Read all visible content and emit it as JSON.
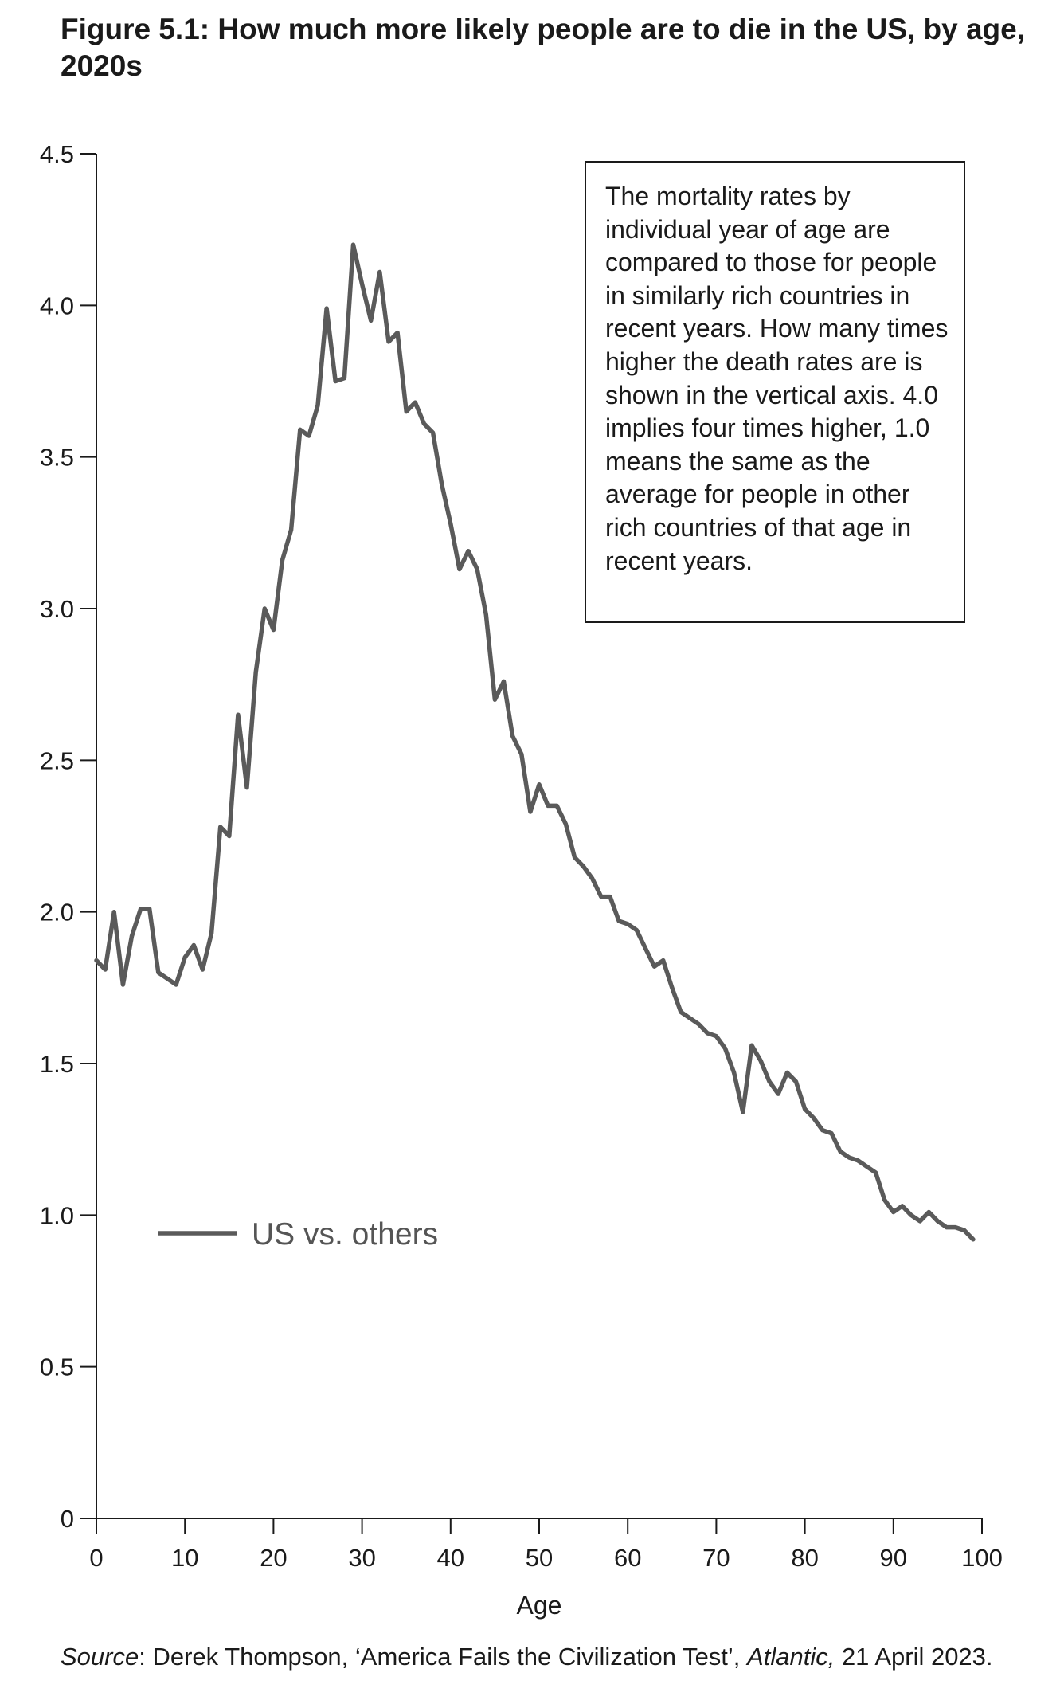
{
  "title": "Figure 5.1: How much more likely people are to die in the US, by age, 2020s",
  "note": "The mortality rates by individual year of age are compared to those for people in similarly rich countries in recent years. How many times higher the death rates are is shown in the vertical axis. 4.0 implies four times higher, 1.0 means the same as the average for people in other rich countries of that age in recent years.",
  "source": {
    "label": "Source",
    "text_before": ": Derek Thompson, ‘America Fails the Civilization Test’, ",
    "publication": "Atlantic,",
    "text_after": " 21 April 2023."
  },
  "colors": {
    "line": "#5a5a5a",
    "axis": "#1a1a1a"
  },
  "chart_data": {
    "type": "line",
    "title": "Figure 5.1: How much more likely people are to die in the US, by age, 2020s",
    "xlabel": "Age",
    "ylabel": "",
    "xlim": [
      0,
      100
    ],
    "ylim": [
      0,
      4.5
    ],
    "xticks": [
      0,
      10,
      20,
      30,
      40,
      50,
      60,
      70,
      80,
      90,
      100
    ],
    "yticks": [
      0,
      0.5,
      1.0,
      1.5,
      2.0,
      2.5,
      3.0,
      3.5,
      4.0,
      4.5
    ],
    "ytick_labels": [
      "0",
      "0.5",
      "1.0",
      "1.5",
      "2.0",
      "2.5",
      "3.0",
      "3.5",
      "4.0",
      "4.5"
    ],
    "grid": false,
    "legend_position": "bottom-left",
    "series": [
      {
        "name": "US vs. others",
        "x": [
          0,
          1,
          2,
          3,
          4,
          5,
          6,
          7,
          8,
          9,
          10,
          11,
          12,
          13,
          14,
          15,
          16,
          17,
          18,
          19,
          20,
          21,
          22,
          23,
          24,
          25,
          26,
          27,
          28,
          29,
          30,
          31,
          32,
          33,
          34,
          35,
          36,
          37,
          38,
          39,
          40,
          41,
          42,
          43,
          44,
          45,
          46,
          47,
          48,
          49,
          50,
          51,
          52,
          53,
          54,
          55,
          56,
          57,
          58,
          59,
          60,
          61,
          62,
          63,
          64,
          65,
          66,
          67,
          68,
          69,
          70,
          71,
          72,
          73,
          74,
          75,
          76,
          77,
          78,
          79,
          80,
          81,
          82,
          83,
          84,
          85,
          86,
          87,
          88,
          89,
          90,
          91,
          92,
          93,
          94,
          95,
          96,
          97,
          98,
          99
        ],
        "values": [
          1.84,
          1.81,
          2.0,
          1.76,
          1.92,
          2.01,
          2.01,
          1.8,
          1.78,
          1.76,
          1.85,
          1.89,
          1.81,
          1.93,
          2.28,
          2.25,
          2.65,
          2.41,
          2.79,
          3.0,
          2.93,
          3.16,
          3.26,
          3.59,
          3.57,
          3.67,
          3.99,
          3.75,
          3.76,
          4.2,
          4.07,
          3.95,
          4.11,
          3.88,
          3.91,
          3.65,
          3.68,
          3.61,
          3.58,
          3.41,
          3.28,
          3.13,
          3.19,
          3.13,
          2.98,
          2.7,
          2.76,
          2.58,
          2.52,
          2.33,
          2.42,
          2.35,
          2.35,
          2.29,
          2.18,
          2.15,
          2.11,
          2.05,
          2.05,
          1.97,
          1.96,
          1.94,
          1.88,
          1.82,
          1.84,
          1.75,
          1.67,
          1.65,
          1.63,
          1.6,
          1.59,
          1.55,
          1.47,
          1.34,
          1.56,
          1.51,
          1.44,
          1.4,
          1.47,
          1.44,
          1.35,
          1.32,
          1.28,
          1.27,
          1.21,
          1.19,
          1.18,
          1.16,
          1.14,
          1.05,
          1.01,
          1.03,
          1.0,
          0.98,
          1.01,
          0.98,
          0.96,
          0.96,
          0.95,
          0.92
        ]
      }
    ]
  }
}
